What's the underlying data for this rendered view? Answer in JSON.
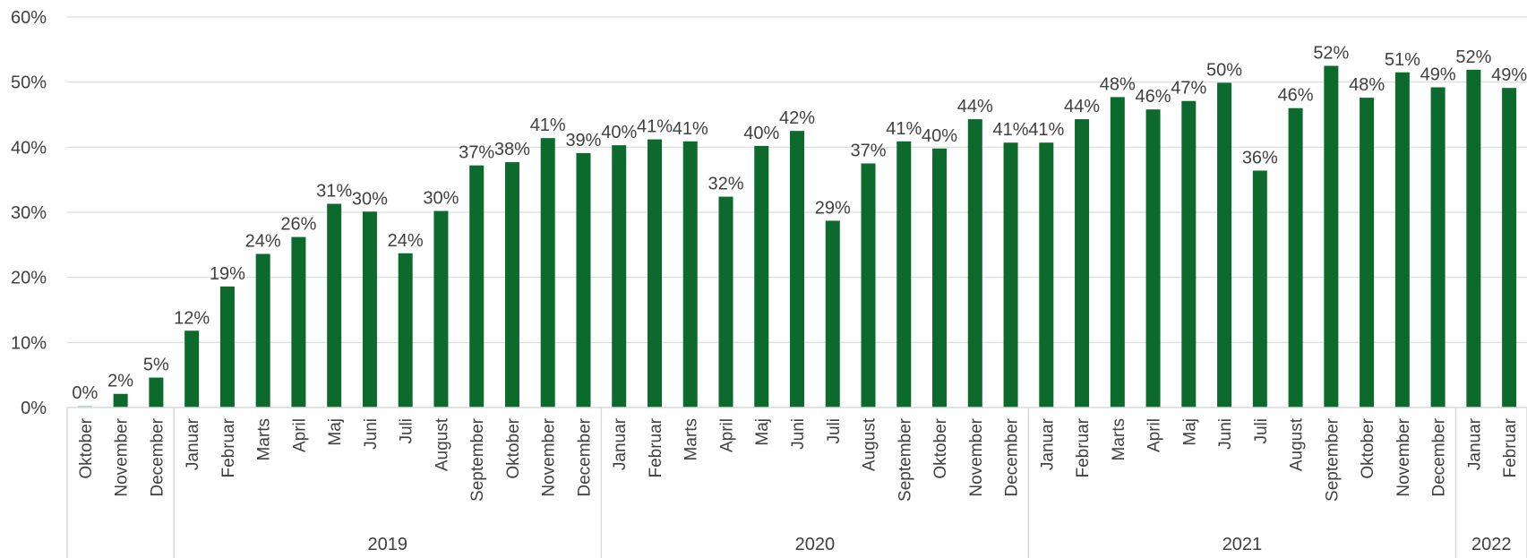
{
  "chart_data": {
    "type": "bar",
    "title": "",
    "xlabel": "",
    "ylabel": "",
    "ylim": [
      0,
      60
    ],
    "yticks": [
      "0%",
      "10%",
      "20%",
      "30%",
      "40%",
      "50%",
      "60%"
    ],
    "grid": true,
    "bar_color": "#0b6a2c",
    "first_bar_color": "#b9d9c0",
    "categories": [
      "Oktober",
      "November",
      "December",
      "Januar",
      "Februar",
      "Marts",
      "April",
      "Maj",
      "Juni",
      "Juli",
      "August",
      "September",
      "Oktober",
      "November",
      "December",
      "Januar",
      "Februar",
      "Marts",
      "April",
      "Maj",
      "Juni",
      "Juli",
      "August",
      "September",
      "Oktober",
      "November",
      "December",
      "Januar",
      "Februar",
      "Marts",
      "April",
      "Maj",
      "Juni",
      "Juli",
      "August",
      "September",
      "Oktober",
      "November",
      "December",
      "Januar",
      "Februar"
    ],
    "values": [
      0.3,
      2.1,
      4.6,
      11.8,
      18.6,
      23.6,
      26.2,
      31.3,
      30.1,
      23.7,
      30.2,
      37.2,
      37.7,
      41.4,
      39.1,
      40.3,
      41.2,
      40.9,
      32.4,
      40.2,
      42.5,
      28.7,
      37.5,
      40.9,
      39.8,
      44.3,
      40.7,
      40.7,
      44.3,
      47.7,
      45.8,
      47.1,
      49.9,
      36.4,
      46.0,
      52.5,
      47.6,
      51.5,
      49.2,
      51.9,
      49.1
    ],
    "data_labels": [
      "0%",
      "2%",
      "5%",
      "12%",
      "19%",
      "24%",
      "26%",
      "31%",
      "30%",
      "24%",
      "30%",
      "37%",
      "38%",
      "41%",
      "39%",
      "40%",
      "41%",
      "41%",
      "32%",
      "40%",
      "42%",
      "29%",
      "37%",
      "41%",
      "40%",
      "44%",
      "41%",
      "41%",
      "44%",
      "48%",
      "46%",
      "47%",
      "50%",
      "36%",
      "46%",
      "52%",
      "48%",
      "51%",
      "49%",
      "52%",
      "49%"
    ],
    "groups": [
      {
        "label": "",
        "count": 3
      },
      {
        "label": "2019",
        "count": 12
      },
      {
        "label": "2020",
        "count": 12
      },
      {
        "label": "2021",
        "count": 12
      },
      {
        "label": "2022",
        "count": 2
      }
    ]
  }
}
